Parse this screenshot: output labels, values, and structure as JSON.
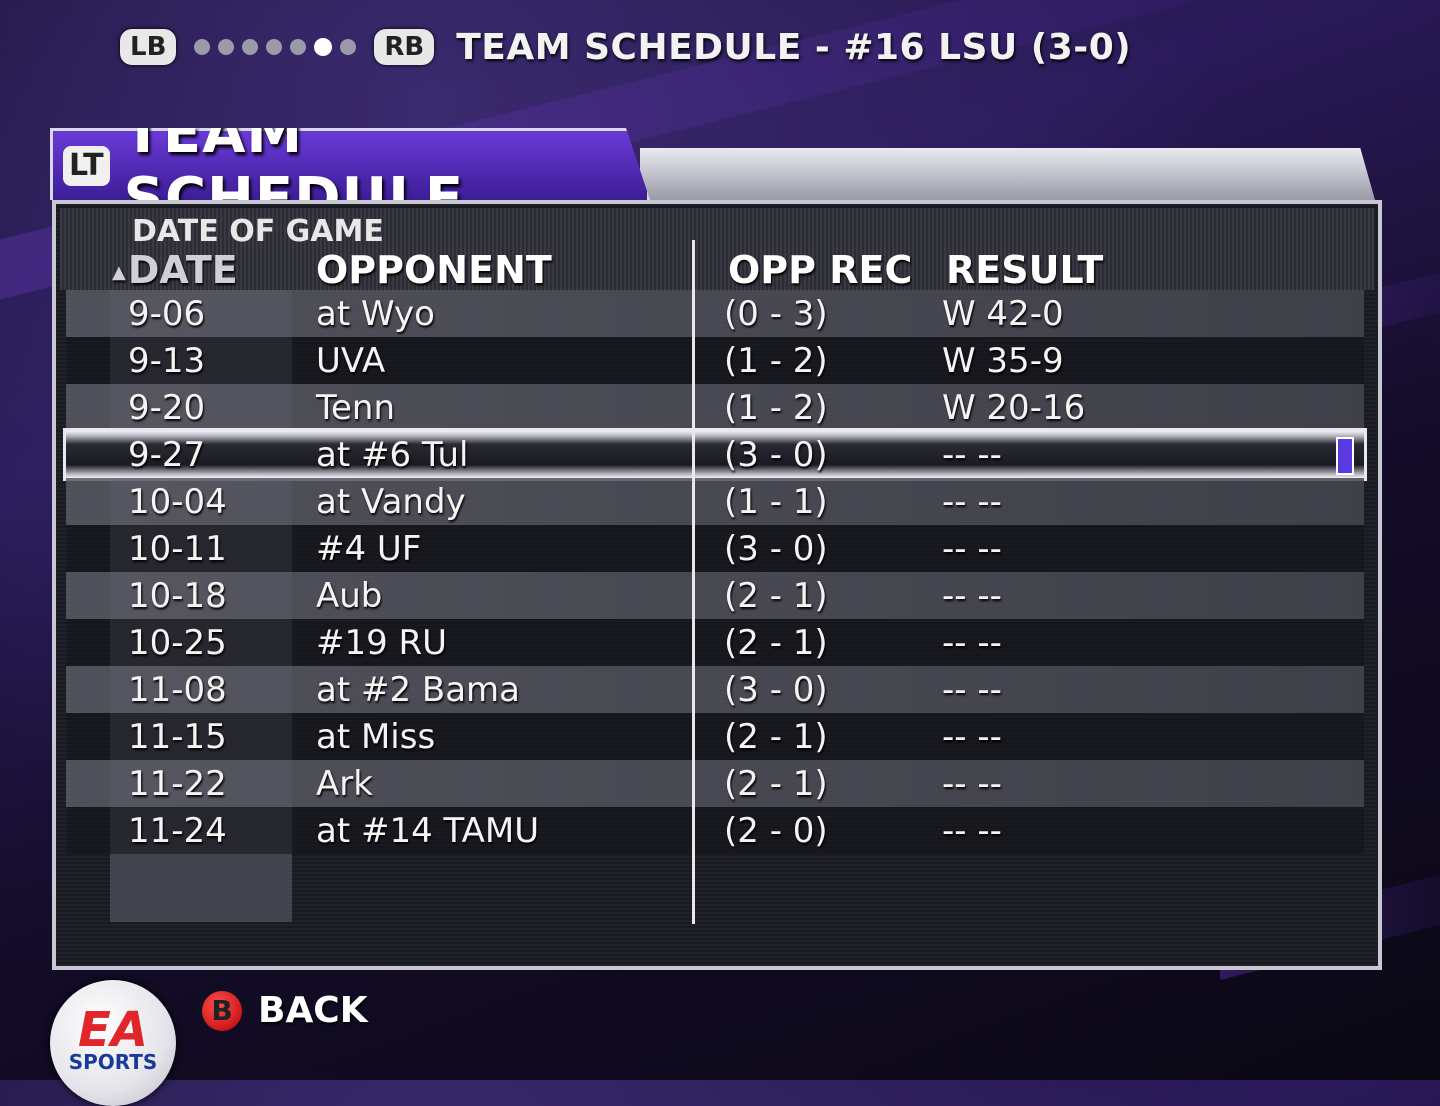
{
  "topbar": {
    "lb": "LB",
    "rb": "RB",
    "title": "TEAM SCHEDULE - #16 LSU (3-0)",
    "page_count": 7,
    "active_page": 5
  },
  "panel": {
    "lt": "LT",
    "title": "TEAM SCHEDULE",
    "hint": "DATE OF GAME",
    "headers": {
      "date": "DATE",
      "opponent": "OPPONENT",
      "opp_rec": "OPP REC",
      "result": "RESULT"
    }
  },
  "rows": [
    {
      "date": "9-06",
      "opponent": "at Wyo",
      "opp_rec": "(0 - 3)",
      "result": "W 42-0"
    },
    {
      "date": "9-13",
      "opponent": "UVA",
      "opp_rec": "(1 - 2)",
      "result": "W 35-9"
    },
    {
      "date": "9-20",
      "opponent": "Tenn",
      "opp_rec": "(1 - 2)",
      "result": "W 20-16"
    },
    {
      "date": "9-27",
      "opponent": "at #6 Tul",
      "opp_rec": "(3 - 0)",
      "result": "-- --"
    },
    {
      "date": "10-04",
      "opponent": "at Vandy",
      "opp_rec": "(1 - 1)",
      "result": "-- --"
    },
    {
      "date": "10-11",
      "opponent": "#4 UF",
      "opp_rec": "(3 - 0)",
      "result": "-- --"
    },
    {
      "date": "10-18",
      "opponent": "Aub",
      "opp_rec": "(2 - 1)",
      "result": "-- --"
    },
    {
      "date": "10-25",
      "opponent": "#19 RU",
      "opp_rec": "(2 - 1)",
      "result": "-- --"
    },
    {
      "date": "11-08",
      "opponent": "at #2 Bama",
      "opp_rec": "(3 - 0)",
      "result": "-- --"
    },
    {
      "date": "11-15",
      "opponent": "at Miss",
      "opp_rec": "(2 - 1)",
      "result": "-- --"
    },
    {
      "date": "11-22",
      "opponent": "Ark",
      "opp_rec": "(2 - 1)",
      "result": "-- --"
    },
    {
      "date": "11-24",
      "opponent": "at #14 TAMU",
      "opp_rec": "(2 - 0)",
      "result": "-- --"
    }
  ],
  "selected_row": 3,
  "footer": {
    "logo_main": "EA",
    "logo_sub": "SPORTS",
    "back_button": "B",
    "back_label": "BACK"
  },
  "colors": {
    "accent": "#5a3ae0",
    "back_button": "#d01010"
  },
  "icons": {
    "sort": "triangle-up-icon"
  }
}
